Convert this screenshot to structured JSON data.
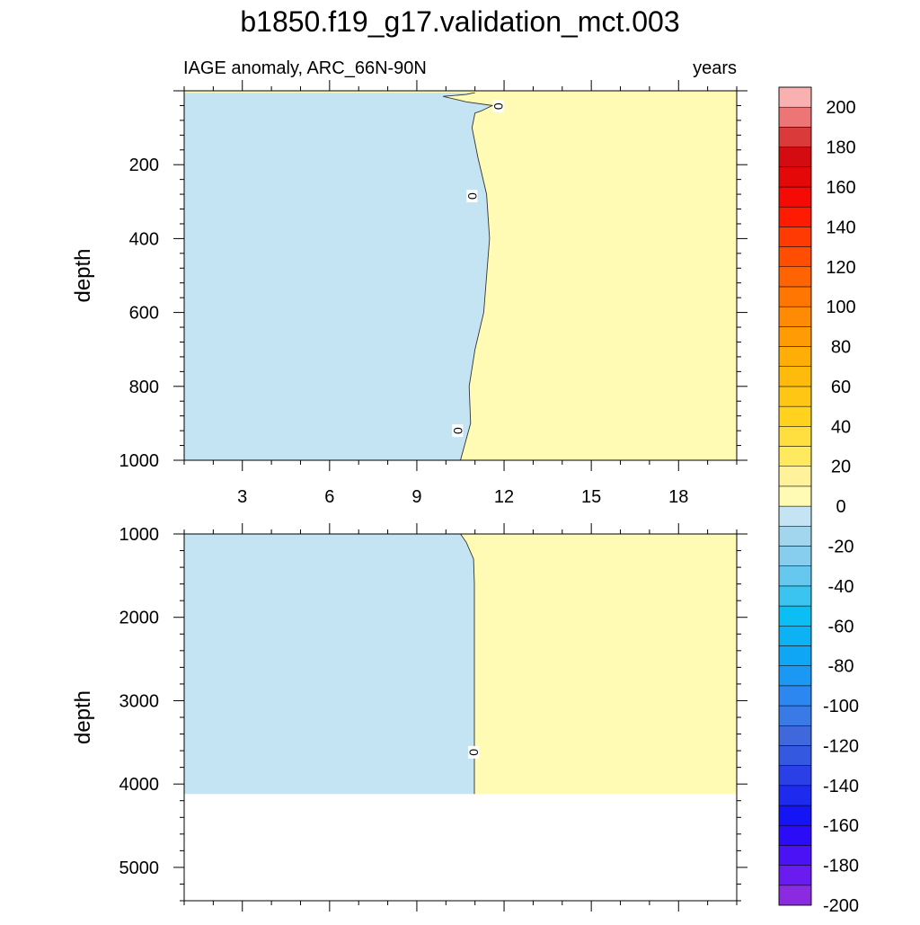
{
  "chart_data": {
    "type": "contour",
    "title": "b1850.f19_g17.validation_mct.003",
    "colorbar": {
      "levels": [
        -200,
        -190,
        -180,
        -170,
        -160,
        -150,
        -140,
        -130,
        -120,
        -110,
        -100,
        -90,
        -80,
        -70,
        -60,
        -50,
        -40,
        -30,
        -20,
        -10,
        0,
        10,
        20,
        30,
        40,
        50,
        60,
        70,
        80,
        90,
        100,
        110,
        120,
        130,
        140,
        150,
        160,
        170,
        180,
        190,
        200
      ],
      "labels": [
        "200",
        "180",
        "160",
        "140",
        "120",
        "100",
        "80",
        "60",
        "40",
        "20",
        "0",
        "-20",
        "-40",
        "-60",
        "-80",
        "-100",
        "-120",
        "-140",
        "-160",
        "-180",
        "-200"
      ],
      "colors_bottom_to_top": [
        "#8a2be2",
        "#6a1cf0",
        "#4c12f6",
        "#2a0cf8",
        "#1414f5",
        "#1e2aee",
        "#2a40e6",
        "#3558e0",
        "#3e68dc",
        "#3a7ae6",
        "#2c88f0",
        "#1a98f4",
        "#10a6f6",
        "#0db2f5",
        "#0bbef4",
        "#3cc4f0",
        "#66c8ee",
        "#86cdee",
        "#a2d6ee",
        "#c5e4f3",
        "#fffbb4",
        "#fff29a",
        "#ffe95f",
        "#ffdf40",
        "#ffd21e",
        "#ffc713",
        "#ffbb0c",
        "#ffad07",
        "#ff9c05",
        "#ff8a03",
        "#ff7602",
        "#ff6302",
        "#ff4e02",
        "#ff3a02",
        "#ff1a02",
        "#f50a05",
        "#e50808",
        "#d40b10",
        "#db3a3a",
        "#ee7575",
        "#f8b0b0"
      ]
    },
    "panels": [
      {
        "id": "upper",
        "left_label": "IAGE anomaly, ARC_66N-90N",
        "right_label": "years",
        "ylabel": "depth",
        "xlim": [
          1,
          20
        ],
        "ylim": [
          0,
          1000
        ],
        "y_reversed": true,
        "x_ticks": [
          3,
          6,
          9,
          12,
          15,
          18
        ],
        "y_ticks": [
          200,
          400,
          600,
          800,
          1000
        ],
        "zero_contour": [
          {
            "x": 11.0,
            "y": 5
          },
          {
            "x": 10.7,
            "y": 10
          },
          {
            "x": 9.9,
            "y": 15
          },
          {
            "x": 10.7,
            "y": 30
          },
          {
            "x": 11.6,
            "y": 40
          },
          {
            "x": 11.2,
            "y": 55
          },
          {
            "x": 11.0,
            "y": 60
          },
          {
            "x": 10.9,
            "y": 100
          },
          {
            "x": 11.1,
            "y": 180
          },
          {
            "x": 11.4,
            "y": 280
          },
          {
            "x": 11.5,
            "y": 400
          },
          {
            "x": 11.3,
            "y": 600
          },
          {
            "x": 11.0,
            "y": 700
          },
          {
            "x": 10.8,
            "y": 800
          },
          {
            "x": 10.85,
            "y": 900
          },
          {
            "x": 10.5,
            "y": 1000
          }
        ],
        "contour_labels": [
          {
            "text": "0",
            "x": 11.8,
            "y": 42
          },
          {
            "text": "0",
            "x": 10.9,
            "y": 285
          },
          {
            "text": "0",
            "x": 10.4,
            "y": 920
          }
        ]
      },
      {
        "id": "lower",
        "ylabel": "depth",
        "xlim": [
          1,
          20
        ],
        "ylim": [
          1000,
          5400
        ],
        "y_reversed": true,
        "y_ticks": [
          1000,
          2000,
          3000,
          4000,
          5000
        ],
        "data_bottom": 4120,
        "zero_contour": [
          {
            "x": 10.5,
            "y": 1000
          },
          {
            "x": 10.7,
            "y": 1100
          },
          {
            "x": 10.95,
            "y": 1300
          },
          {
            "x": 10.98,
            "y": 1600
          },
          {
            "x": 10.98,
            "y": 2500
          },
          {
            "x": 10.98,
            "y": 4120
          }
        ],
        "contour_labels": [
          {
            "text": "0",
            "x": 10.95,
            "y": 3620
          }
        ]
      }
    ]
  }
}
